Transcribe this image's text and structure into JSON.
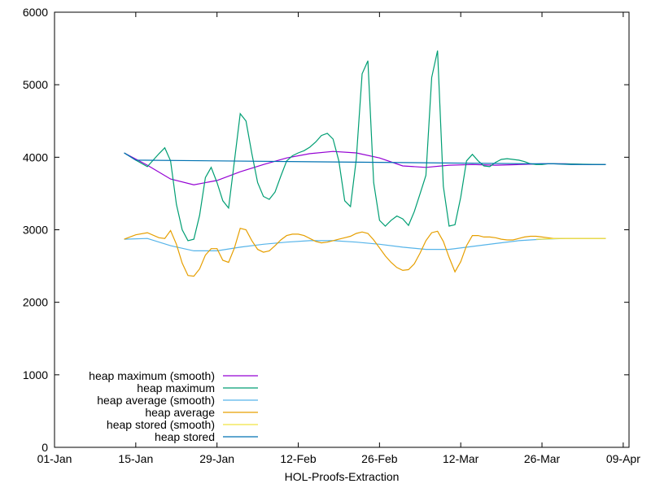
{
  "chart_data": {
    "type": "line",
    "title": "",
    "xlabel": "HOL-Proofs-Extraction",
    "ylabel": "",
    "x_ticks": [
      "01-Jan",
      "15-Jan",
      "29-Jan",
      "12-Feb",
      "26-Feb",
      "12-Mar",
      "26-Mar",
      "09-Apr"
    ],
    "y_ticks": [
      "0",
      "1000",
      "2000",
      "3000",
      "4000",
      "5000",
      "6000"
    ],
    "ylim": [
      0,
      6000
    ],
    "xlim": [
      "01-Jan",
      "09-Apr"
    ],
    "legend_position": "bottom-left",
    "grid": false,
    "series": [
      {
        "name": "heap maximum (smooth)",
        "color": "#9400d3",
        "x": [
          "2024-01-13",
          "2024-01-17",
          "2024-01-21",
          "2024-01-25",
          "2024-01-29",
          "2024-02-02",
          "2024-02-06",
          "2024-02-10",
          "2024-02-14",
          "2024-02-18",
          "2024-02-22",
          "2024-02-26",
          "2024-03-01",
          "2024-03-05",
          "2024-03-09",
          "2024-03-13",
          "2024-03-17",
          "2024-03-21",
          "2024-03-25",
          "2024-03-29",
          "2024-04-02",
          "2024-04-05"
        ],
        "values": [
          4060,
          3890,
          3700,
          3620,
          3680,
          3800,
          3900,
          3990,
          4050,
          4080,
          4060,
          3990,
          3880,
          3860,
          3890,
          3900,
          3890,
          3900,
          3910,
          3910,
          3900,
          3900
        ]
      },
      {
        "name": "heap maximum",
        "color": "#009e73",
        "x": [
          "2024-01-13",
          "2024-01-15",
          "2024-01-17",
          "2024-01-19",
          "2024-01-20",
          "2024-01-21",
          "2024-01-22",
          "2024-01-23",
          "2024-01-24",
          "2024-01-25",
          "2024-01-26",
          "2024-01-27",
          "2024-01-28",
          "2024-01-29",
          "2024-01-30",
          "2024-01-31",
          "2024-02-01",
          "2024-02-02",
          "2024-02-03",
          "2024-02-04",
          "2024-02-05",
          "2024-02-06",
          "2024-02-07",
          "2024-02-08",
          "2024-02-09",
          "2024-02-10",
          "2024-02-11",
          "2024-02-12",
          "2024-02-13",
          "2024-02-14",
          "2024-02-15",
          "2024-02-16",
          "2024-02-17",
          "2024-02-18",
          "2024-02-19",
          "2024-02-20",
          "2024-02-21",
          "2024-02-22",
          "2024-02-23",
          "2024-02-24",
          "2024-02-25",
          "2024-02-26",
          "2024-02-27",
          "2024-02-28",
          "2024-02-29",
          "2024-03-01",
          "2024-03-02",
          "2024-03-03",
          "2024-03-04",
          "2024-03-05",
          "2024-03-06",
          "2024-03-07",
          "2024-03-08",
          "2024-03-09",
          "2024-03-10",
          "2024-03-11",
          "2024-03-12",
          "2024-03-13",
          "2024-03-14",
          "2024-03-15",
          "2024-03-16",
          "2024-03-17",
          "2024-03-18",
          "2024-03-19",
          "2024-03-20",
          "2024-03-21",
          "2024-03-22",
          "2024-03-23",
          "2024-03-24",
          "2024-03-25",
          "2024-03-26",
          "2024-03-27",
          "2024-04-05"
        ],
        "values": [
          4060,
          3960,
          3870,
          4050,
          4130,
          3950,
          3350,
          3000,
          2850,
          2870,
          3200,
          3720,
          3860,
          3650,
          3400,
          3300,
          3950,
          4600,
          4500,
          4050,
          3650,
          3460,
          3420,
          3520,
          3740,
          3950,
          4020,
          4060,
          4090,
          4140,
          4210,
          4300,
          4330,
          4250,
          3950,
          3400,
          3320,
          3970,
          5150,
          5330,
          3650,
          3130,
          3050,
          3130,
          3190,
          3150,
          3060,
          3250,
          3500,
          3750,
          5100,
          5470,
          3600,
          3050,
          3070,
          3450,
          3950,
          4040,
          3950,
          3880,
          3870,
          3930,
          3970,
          3980,
          3970,
          3960,
          3940,
          3910,
          3900,
          3900,
          3910,
          3910,
          3900
        ]
      },
      {
        "name": "heap average (smooth)",
        "color": "#56b4e9",
        "x": [
          "2024-01-13",
          "2024-01-17",
          "2024-01-21",
          "2024-01-25",
          "2024-01-29",
          "2024-02-02",
          "2024-02-06",
          "2024-02-10",
          "2024-02-14",
          "2024-02-18",
          "2024-02-22",
          "2024-02-26",
          "2024-03-01",
          "2024-03-05",
          "2024-03-09",
          "2024-03-13",
          "2024-03-17",
          "2024-03-21",
          "2024-03-25",
          "2024-03-29",
          "2024-04-02",
          "2024-04-05"
        ],
        "values": [
          2870,
          2880,
          2780,
          2710,
          2710,
          2760,
          2800,
          2830,
          2850,
          2850,
          2830,
          2800,
          2760,
          2730,
          2730,
          2770,
          2810,
          2850,
          2870,
          2880,
          2880,
          2880
        ]
      },
      {
        "name": "heap average",
        "color": "#e69f00",
        "x": [
          "2024-01-13",
          "2024-01-15",
          "2024-01-17",
          "2024-01-19",
          "2024-01-20",
          "2024-01-21",
          "2024-01-22",
          "2024-01-23",
          "2024-01-24",
          "2024-01-25",
          "2024-01-26",
          "2024-01-27",
          "2024-01-28",
          "2024-01-29",
          "2024-01-30",
          "2024-01-31",
          "2024-02-01",
          "2024-02-02",
          "2024-02-03",
          "2024-02-04",
          "2024-02-05",
          "2024-02-06",
          "2024-02-07",
          "2024-02-08",
          "2024-02-09",
          "2024-02-10",
          "2024-02-11",
          "2024-02-12",
          "2024-02-13",
          "2024-02-14",
          "2024-02-15",
          "2024-02-16",
          "2024-02-17",
          "2024-02-18",
          "2024-02-19",
          "2024-02-20",
          "2024-02-21",
          "2024-02-22",
          "2024-02-23",
          "2024-02-24",
          "2024-02-25",
          "2024-02-26",
          "2024-02-27",
          "2024-02-28",
          "2024-02-29",
          "2024-03-01",
          "2024-03-02",
          "2024-03-03",
          "2024-03-04",
          "2024-03-05",
          "2024-03-06",
          "2024-03-07",
          "2024-03-08",
          "2024-03-09",
          "2024-03-10",
          "2024-03-11",
          "2024-03-12",
          "2024-03-13",
          "2024-03-14",
          "2024-03-15",
          "2024-03-16",
          "2024-03-17",
          "2024-03-18",
          "2024-03-19",
          "2024-03-20",
          "2024-03-21",
          "2024-03-22",
          "2024-03-23",
          "2024-03-24",
          "2024-03-25",
          "2024-03-26",
          "2024-03-27",
          "2024-04-05"
        ],
        "values": [
          2870,
          2930,
          2960,
          2890,
          2880,
          2990,
          2800,
          2540,
          2370,
          2360,
          2460,
          2650,
          2740,
          2740,
          2580,
          2550,
          2750,
          3020,
          3000,
          2850,
          2730,
          2690,
          2710,
          2780,
          2860,
          2920,
          2940,
          2940,
          2920,
          2880,
          2840,
          2820,
          2830,
          2850,
          2870,
          2890,
          2910,
          2950,
          2970,
          2950,
          2860,
          2750,
          2640,
          2550,
          2480,
          2440,
          2450,
          2530,
          2680,
          2850,
          2960,
          2980,
          2840,
          2620,
          2420,
          2560,
          2780,
          2920,
          2920,
          2900,
          2900,
          2890,
          2870,
          2860,
          2860,
          2880,
          2900,
          2910,
          2910,
          2900,
          2890,
          2880,
          2880
        ]
      },
      {
        "name": "heap stored (smooth)",
        "color": "#f0e442",
        "x": [
          "2024-03-24",
          "2024-03-28",
          "2024-04-01",
          "2024-04-05"
        ],
        "values": [
          2870,
          2880,
          2880,
          2880
        ]
      },
      {
        "name": "heap stored",
        "color": "#0072b2",
        "x": [
          "2024-01-13",
          "2024-01-14",
          "2024-01-15",
          "2024-03-24",
          "2024-03-26",
          "2024-03-27",
          "2024-03-30",
          "2024-04-01",
          "2024-04-02",
          "2024-04-05"
        ],
        "values": [
          4060,
          4010,
          3960,
          3910,
          3910,
          3910,
          3900,
          3900,
          3900,
          3900
        ]
      }
    ]
  }
}
